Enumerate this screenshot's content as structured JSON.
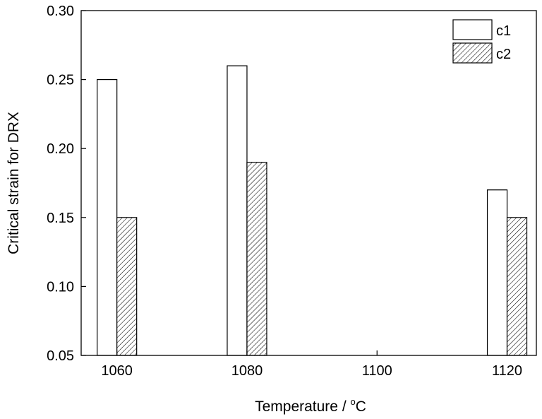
{
  "chart_data": {
    "type": "bar",
    "xlabel_prefix": "Temperature / ",
    "xlabel_degree": "o",
    "xlabel_unit": "C",
    "ylabel": "Critical strain for DRX",
    "x_ticks": [
      "1060",
      "1080",
      "1100",
      "1120"
    ],
    "y_ticks": [
      "0.05",
      "0.10",
      "0.15",
      "0.20",
      "0.25",
      "0.30"
    ],
    "xlim": [
      1054.5,
      1124.5
    ],
    "ylim": [
      0.05,
      0.3
    ],
    "x_tick_values": [
      1060,
      1080,
      1100,
      1120
    ],
    "y_tick_values": [
      0.05,
      0.1,
      0.15,
      0.2,
      0.25,
      0.3
    ],
    "legend_position": "top-right",
    "grid": false,
    "series": [
      {
        "name": "c1",
        "fill": "#ffffff",
        "pattern": "none",
        "points": [
          {
            "x": 1060,
            "y": 0.25
          },
          {
            "x": 1080,
            "y": 0.26
          },
          {
            "x": 1120,
            "y": 0.17
          }
        ]
      },
      {
        "name": "c2",
        "fill": "#ffffff",
        "pattern": "diagonal-hatch",
        "points": [
          {
            "x": 1060,
            "y": 0.15
          },
          {
            "x": 1080,
            "y": 0.19
          },
          {
            "x": 1120,
            "y": 0.15
          }
        ]
      }
    ]
  }
}
